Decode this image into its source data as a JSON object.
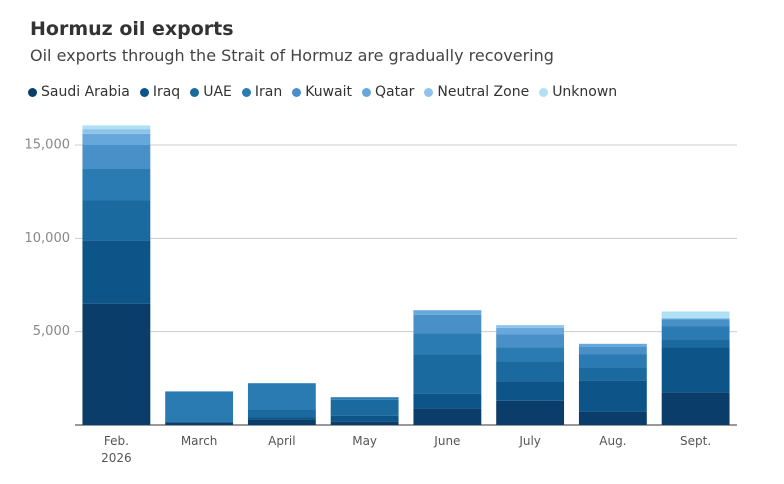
{
  "chart_data": {
    "type": "stacked-bar",
    "title": "Hormuz oil exports",
    "subtitle": "Oil exports through the Strait of Hormuz are gradually recovering",
    "categories": [
      "Feb. 2026",
      "March",
      "April",
      "May",
      "June",
      "July",
      "Aug.",
      "Sept."
    ],
    "series": [
      {
        "name": "Saudi Arabia",
        "color": "#0b3d6b",
        "values": [
          6500,
          150,
          300,
          200,
          900,
          1300,
          700,
          1750
        ]
      },
      {
        "name": "Iraq",
        "color": "#0d5589",
        "values": [
          3400,
          0,
          100,
          300,
          800,
          1050,
          1700,
          2400
        ]
      },
      {
        "name": "UAE",
        "color": "#1a6aa0",
        "values": [
          2150,
          0,
          450,
          850,
          2050,
          1050,
          700,
          450
        ]
      },
      {
        "name": "Iran",
        "color": "#2b7bb3",
        "values": [
          1700,
          1650,
          1350,
          100,
          1150,
          750,
          700,
          700
        ]
      },
      {
        "name": "Kuwait",
        "color": "#4a90c8",
        "values": [
          1250,
          0,
          50,
          50,
          1000,
          700,
          400,
          350
        ]
      },
      {
        "name": "Qatar",
        "color": "#66a8dc",
        "values": [
          600,
          0,
          0,
          0,
          250,
          350,
          150,
          60
        ]
      },
      {
        "name": "Neutral Zone",
        "color": "#8ec4ea",
        "values": [
          250,
          0,
          0,
          0,
          0,
          150,
          0,
          0
        ]
      },
      {
        "name": "Unknown",
        "color": "#b0e0f4",
        "values": [
          200,
          0,
          0,
          0,
          0,
          0,
          0,
          370
        ]
      }
    ],
    "ylim": [
      0,
      16500
    ],
    "yticks": [
      {
        "value": 5000,
        "label": "5,000"
      },
      {
        "value": 10000,
        "label": "10,000"
      },
      {
        "value": 15000,
        "label": "15,000"
      }
    ],
    "grid": true
  }
}
